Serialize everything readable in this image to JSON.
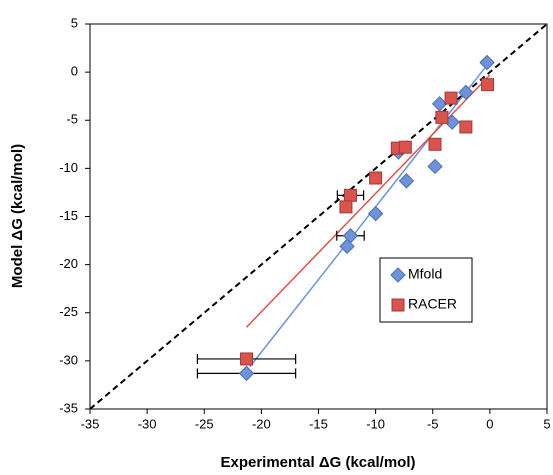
{
  "chart_data": {
    "type": "scatter",
    "x_label": "Experimental ΔG (kcal/mol)",
    "y_label": "Model ΔG (kcal/mol)",
    "xlim": [
      -35,
      5
    ],
    "ylim": [
      -35,
      5
    ],
    "xticks": [
      -35,
      -30,
      -25,
      -20,
      -15,
      -10,
      -5,
      0,
      5
    ],
    "yticks": [
      -35,
      -30,
      -25,
      -20,
      -15,
      -10,
      -5,
      0,
      5
    ],
    "identity_line": true,
    "legend": "lower right",
    "series": [
      {
        "name": "Mfold",
        "color": "#6f93d6",
        "marker": "diamond",
        "x": [
          -0.25,
          -2.1,
          -4.4,
          -3.3,
          -8.0,
          -4.8,
          -7.3,
          -10.0,
          -12.2,
          -12.5,
          -21.3
        ],
        "y": [
          1.0,
          -2.1,
          -3.3,
          -5.2,
          -8.3,
          -9.8,
          -11.3,
          -14.7,
          -17.0,
          -18.1,
          -31.3
        ],
        "x_err": [
          null,
          null,
          null,
          null,
          null,
          null,
          null,
          null,
          1.2,
          null,
          4.3
        ],
        "trend": {
          "x": [
            -21.0,
            0.0
          ],
          "y": [
            -30.6,
            1.1
          ]
        }
      },
      {
        "name": "RACER",
        "color": "#d9534f",
        "marker": "square",
        "x": [
          -0.2,
          -3.4,
          -4.2,
          -2.1,
          -4.8,
          -8.1,
          -7.4,
          -10.0,
          -12.2,
          -12.6,
          -21.3
        ],
        "y": [
          -1.3,
          -2.7,
          -4.7,
          -5.7,
          -7.5,
          -7.9,
          -7.8,
          -11.0,
          -12.8,
          -14.0,
          -29.8
        ],
        "x_err": [
          null,
          null,
          null,
          null,
          null,
          null,
          null,
          null,
          1.15,
          null,
          4.3
        ],
        "trend": {
          "x": [
            -21.3,
            0.0
          ],
          "y": [
            -26.5,
            -0.3
          ]
        }
      }
    ]
  }
}
